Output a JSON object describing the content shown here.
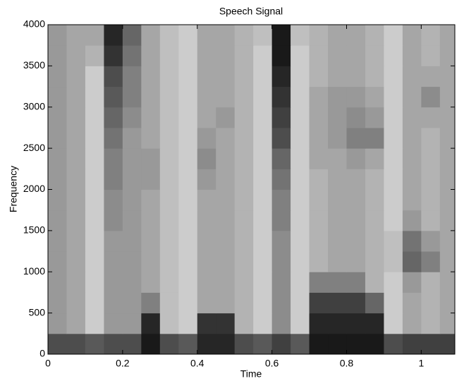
{
  "chart_data": {
    "type": "heatmap",
    "title": "Speech Signal",
    "x_label": "Time",
    "y_label": "Frequency",
    "x": [
      0.025,
      0.075,
      0.125,
      0.175,
      0.225,
      0.275,
      0.325,
      0.375,
      0.425,
      0.475,
      0.525,
      0.575,
      0.625,
      0.675,
      0.725,
      0.775,
      0.825,
      0.875,
      0.925,
      0.975,
      1.025,
      1.075
    ],
    "y": [
      125,
      375,
      625,
      875,
      1125,
      1375,
      1625,
      1875,
      2125,
      2375,
      2625,
      2875,
      3125,
      3375,
      3625,
      3875
    ],
    "z": [
      [
        0.7,
        0.7,
        0.65,
        0.7,
        0.7,
        0.9,
        0.7,
        0.65,
        0.85,
        0.85,
        0.7,
        0.65,
        0.75,
        0.65,
        0.9,
        0.9,
        0.9,
        0.9,
        0.7,
        0.75,
        0.75,
        0.75
      ],
      [
        0.4,
        0.35,
        0.2,
        0.4,
        0.4,
        0.85,
        0.25,
        0.2,
        0.8,
        0.8,
        0.3,
        0.2,
        0.45,
        0.2,
        0.85,
        0.85,
        0.85,
        0.85,
        0.2,
        0.35,
        0.3,
        0.35
      ],
      [
        0.4,
        0.35,
        0.2,
        0.4,
        0.4,
        0.5,
        0.25,
        0.2,
        0.35,
        0.35,
        0.3,
        0.2,
        0.45,
        0.2,
        0.75,
        0.75,
        0.75,
        0.6,
        0.2,
        0.35,
        0.3,
        0.35
      ],
      [
        0.4,
        0.35,
        0.2,
        0.4,
        0.4,
        0.35,
        0.25,
        0.2,
        0.35,
        0.35,
        0.3,
        0.2,
        0.45,
        0.2,
        0.5,
        0.5,
        0.5,
        0.3,
        0.2,
        0.4,
        0.3,
        0.35
      ],
      [
        0.4,
        0.35,
        0.2,
        0.4,
        0.4,
        0.35,
        0.25,
        0.2,
        0.35,
        0.35,
        0.3,
        0.2,
        0.45,
        0.2,
        0.3,
        0.35,
        0.35,
        0.3,
        0.25,
        0.6,
        0.5,
        0.35
      ],
      [
        0.4,
        0.35,
        0.2,
        0.4,
        0.4,
        0.35,
        0.25,
        0.2,
        0.35,
        0.35,
        0.3,
        0.2,
        0.45,
        0.2,
        0.3,
        0.35,
        0.35,
        0.3,
        0.25,
        0.55,
        0.4,
        0.35
      ],
      [
        0.4,
        0.35,
        0.2,
        0.45,
        0.4,
        0.35,
        0.25,
        0.2,
        0.35,
        0.35,
        0.3,
        0.2,
        0.5,
        0.2,
        0.3,
        0.35,
        0.35,
        0.3,
        0.2,
        0.4,
        0.3,
        0.35
      ],
      [
        0.4,
        0.35,
        0.2,
        0.45,
        0.4,
        0.35,
        0.25,
        0.2,
        0.35,
        0.35,
        0.3,
        0.2,
        0.5,
        0.2,
        0.3,
        0.35,
        0.35,
        0.3,
        0.2,
        0.35,
        0.3,
        0.35
      ],
      [
        0.4,
        0.35,
        0.2,
        0.5,
        0.4,
        0.4,
        0.25,
        0.2,
        0.4,
        0.35,
        0.3,
        0.2,
        0.55,
        0.2,
        0.3,
        0.35,
        0.35,
        0.3,
        0.2,
        0.35,
        0.3,
        0.35
      ],
      [
        0.4,
        0.35,
        0.2,
        0.5,
        0.4,
        0.4,
        0.25,
        0.2,
        0.45,
        0.35,
        0.3,
        0.2,
        0.6,
        0.2,
        0.35,
        0.35,
        0.4,
        0.35,
        0.2,
        0.35,
        0.3,
        0.35
      ],
      [
        0.4,
        0.35,
        0.2,
        0.55,
        0.4,
        0.35,
        0.25,
        0.2,
        0.4,
        0.35,
        0.3,
        0.2,
        0.7,
        0.2,
        0.35,
        0.4,
        0.5,
        0.5,
        0.2,
        0.35,
        0.3,
        0.35
      ],
      [
        0.4,
        0.35,
        0.2,
        0.6,
        0.45,
        0.35,
        0.25,
        0.2,
        0.35,
        0.4,
        0.3,
        0.2,
        0.75,
        0.2,
        0.35,
        0.4,
        0.45,
        0.4,
        0.2,
        0.35,
        0.35,
        0.35
      ],
      [
        0.4,
        0.35,
        0.2,
        0.65,
        0.5,
        0.35,
        0.25,
        0.2,
        0.35,
        0.35,
        0.3,
        0.2,
        0.8,
        0.2,
        0.35,
        0.4,
        0.4,
        0.35,
        0.2,
        0.35,
        0.45,
        0.35
      ],
      [
        0.4,
        0.35,
        0.2,
        0.7,
        0.5,
        0.35,
        0.25,
        0.2,
        0.35,
        0.35,
        0.3,
        0.2,
        0.85,
        0.2,
        0.3,
        0.35,
        0.35,
        0.3,
        0.2,
        0.35,
        0.35,
        0.35
      ],
      [
        0.4,
        0.35,
        0.3,
        0.8,
        0.55,
        0.35,
        0.25,
        0.2,
        0.35,
        0.35,
        0.3,
        0.2,
        0.9,
        0.2,
        0.3,
        0.35,
        0.35,
        0.3,
        0.2,
        0.35,
        0.3,
        0.35
      ],
      [
        0.4,
        0.35,
        0.35,
        0.85,
        0.6,
        0.35,
        0.25,
        0.2,
        0.35,
        0.35,
        0.3,
        0.25,
        0.9,
        0.25,
        0.3,
        0.35,
        0.35,
        0.3,
        0.2,
        0.35,
        0.3,
        0.35
      ]
    ],
    "xlim": [
      0,
      1.09
    ],
    "ylim": [
      0,
      4000
    ],
    "xticks": [
      0,
      0.2,
      0.4,
      0.6,
      0.8,
      1
    ],
    "yticks": [
      0,
      500,
      1000,
      1500,
      2000,
      2500,
      3000,
      3500,
      4000
    ],
    "colormap": "gray"
  }
}
